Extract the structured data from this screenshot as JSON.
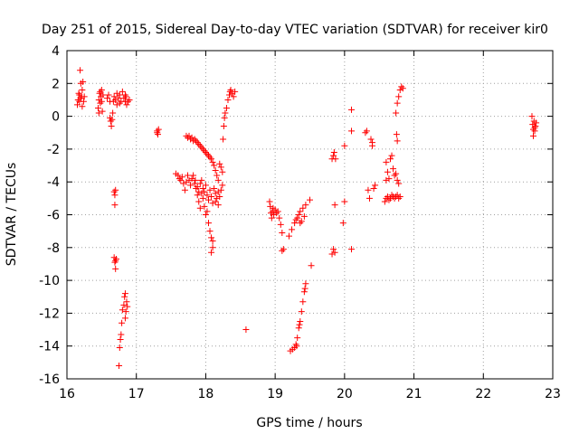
{
  "chart_data": {
    "type": "scatter",
    "title": "Day 251 of 2015, Sidereal Day-to-day VTEC variation (SDTVAR) for receiver kir0",
    "xlabel": "GPS time / hours",
    "ylabel": "SDTVAR / TECUs",
    "xlim": [
      16,
      23
    ],
    "ylim": [
      -16,
      4
    ],
    "grid": true,
    "marker": "+",
    "marker_color": "#ff0000",
    "xticks": [
      16,
      17,
      18,
      19,
      20,
      21,
      22,
      23
    ],
    "xtick_labels": [
      "16",
      "17",
      "18",
      "19",
      "20",
      "21",
      "22",
      "23"
    ],
    "yticks": [
      4,
      2,
      0,
      -2,
      -4,
      -6,
      -8,
      -10,
      -12,
      -14,
      -16
    ],
    "ytick_labels": [
      "4",
      "2",
      "0",
      "-2",
      "-4",
      "-6",
      "-8",
      "-10",
      "-12",
      "-14",
      "-16"
    ],
    "series": [
      {
        "name": "SDTVAR",
        "points": [
          [
            16.15,
            0.7
          ],
          [
            16.16,
            1.0
          ],
          [
            16.17,
            1.4
          ],
          [
            16.18,
            0.9
          ],
          [
            16.19,
            2.8
          ],
          [
            16.2,
            2.0
          ],
          [
            16.21,
            1.2
          ],
          [
            16.22,
            1.6
          ],
          [
            16.23,
            2.1
          ],
          [
            16.24,
            0.9
          ],
          [
            16.25,
            1.2
          ],
          [
            16.22,
            0.6
          ],
          [
            16.18,
            1.3
          ],
          [
            16.2,
            1.1
          ],
          [
            16.45,
            0.5
          ],
          [
            16.46,
            1.0
          ],
          [
            16.47,
            1.4
          ],
          [
            16.48,
            0.8
          ],
          [
            16.49,
            1.2
          ],
          [
            16.5,
            1.6
          ],
          [
            16.51,
            0.3
          ],
          [
            16.52,
            1.3
          ],
          [
            16.46,
            0.2
          ],
          [
            16.48,
            1.5
          ],
          [
            16.5,
            0.9
          ],
          [
            16.58,
            1.1
          ],
          [
            16.6,
            1.3
          ],
          [
            16.62,
            0.9
          ],
          [
            16.62,
            -0.1
          ],
          [
            16.63,
            -0.3
          ],
          [
            16.64,
            -0.6
          ],
          [
            16.65,
            -0.2
          ],
          [
            16.66,
            0.2
          ],
          [
            16.67,
            0.9
          ],
          [
            16.68,
            1.2
          ],
          [
            16.7,
            1.0
          ],
          [
            16.72,
            0.7
          ],
          [
            16.74,
            1.1
          ],
          [
            16.76,
            1.3
          ],
          [
            16.78,
            0.9
          ],
          [
            16.8,
            1.5
          ],
          [
            16.82,
            1.1
          ],
          [
            16.84,
            0.9
          ],
          [
            16.85,
            1.2
          ],
          [
            16.86,
            0.7
          ],
          [
            16.88,
            0.9
          ],
          [
            16.9,
            1.0
          ],
          [
            16.72,
            1.4
          ],
          [
            16.76,
            0.8
          ],
          [
            16.84,
            1.3
          ],
          [
            16.68,
            -4.6
          ],
          [
            16.69,
            -4.8
          ],
          [
            16.7,
            -4.5
          ],
          [
            16.69,
            -5.4
          ],
          [
            16.68,
            -8.6
          ],
          [
            16.69,
            -8.9
          ],
          [
            16.7,
            -8.8
          ],
          [
            16.7,
            -9.3
          ],
          [
            16.71,
            -8.7
          ],
          [
            16.75,
            -15.2
          ],
          [
            16.76,
            -14.1
          ],
          [
            16.77,
            -13.6
          ],
          [
            16.78,
            -13.3
          ],
          [
            16.79,
            -12.6
          ],
          [
            16.8,
            -11.8
          ],
          [
            16.82,
            -11.5
          ],
          [
            16.83,
            -11.0
          ],
          [
            16.84,
            -10.8
          ],
          [
            16.85,
            -11.9
          ],
          [
            16.86,
            -11.3
          ],
          [
            16.87,
            -11.6
          ],
          [
            16.84,
            -12.3
          ],
          [
            17.3,
            -0.9
          ],
          [
            17.31,
            -1.1
          ],
          [
            17.32,
            -0.8
          ],
          [
            17.3,
            -1.0
          ],
          [
            17.57,
            -3.5
          ],
          [
            17.6,
            -3.6
          ],
          [
            17.62,
            -3.8
          ],
          [
            17.64,
            -3.9
          ],
          [
            17.66,
            -3.7
          ],
          [
            17.68,
            -4.1
          ],
          [
            17.7,
            -4.5
          ],
          [
            17.72,
            -4.0
          ],
          [
            17.74,
            -3.6
          ],
          [
            17.76,
            -3.9
          ],
          [
            17.78,
            -4.2
          ],
          [
            17.8,
            -3.8
          ],
          [
            17.82,
            -3.6
          ],
          [
            17.84,
            -4.1
          ],
          [
            17.86,
            -4.4
          ],
          [
            17.88,
            -4.8
          ],
          [
            17.9,
            -5.2
          ],
          [
            17.92,
            -5.6
          ],
          [
            17.94,
            -4.7
          ],
          [
            17.96,
            -5.0
          ],
          [
            17.98,
            -5.5
          ],
          [
            18.0,
            -6.0
          ],
          [
            18.02,
            -5.8
          ],
          [
            18.04,
            -6.5
          ],
          [
            18.06,
            -7.0
          ],
          [
            18.08,
            -7.4
          ],
          [
            18.1,
            -8.0
          ],
          [
            18.08,
            -8.3
          ],
          [
            18.1,
            -7.6
          ],
          [
            17.72,
            -1.2
          ],
          [
            17.74,
            -1.3
          ],
          [
            17.76,
            -1.2
          ],
          [
            17.78,
            -1.4
          ],
          [
            17.8,
            -1.3
          ],
          [
            17.82,
            -1.5
          ],
          [
            17.84,
            -1.4
          ],
          [
            17.86,
            -1.5
          ],
          [
            17.88,
            -1.6
          ],
          [
            17.9,
            -1.7
          ],
          [
            17.92,
            -1.8
          ],
          [
            17.94,
            -1.9
          ],
          [
            17.96,
            -2.0
          ],
          [
            17.98,
            -2.1
          ],
          [
            18.0,
            -2.2
          ],
          [
            18.02,
            -2.3
          ],
          [
            18.04,
            -2.4
          ],
          [
            18.06,
            -2.5
          ],
          [
            18.08,
            -2.6
          ],
          [
            18.1,
            -2.8
          ],
          [
            18.12,
            -3.0
          ],
          [
            18.14,
            -3.3
          ],
          [
            18.16,
            -3.6
          ],
          [
            18.18,
            -3.9
          ],
          [
            18.2,
            -2.9
          ],
          [
            18.22,
            -3.1
          ],
          [
            18.24,
            -3.4
          ],
          [
            17.85,
            -3.9
          ],
          [
            17.88,
            -4.3
          ],
          [
            17.9,
            -4.6
          ],
          [
            17.92,
            -4.1
          ],
          [
            17.94,
            -3.9
          ],
          [
            17.96,
            -4.4
          ],
          [
            17.98,
            -4.6
          ],
          [
            18.0,
            -4.2
          ],
          [
            18.02,
            -4.8
          ],
          [
            18.04,
            -5.1
          ],
          [
            18.06,
            -4.5
          ],
          [
            18.08,
            -4.9
          ],
          [
            18.1,
            -5.3
          ],
          [
            18.12,
            -4.4
          ],
          [
            18.14,
            -4.7
          ],
          [
            18.16,
            -5.0
          ],
          [
            18.18,
            -5.4
          ],
          [
            18.2,
            -4.9
          ],
          [
            18.22,
            -4.5
          ],
          [
            18.24,
            -4.2
          ],
          [
            18.18,
            -4.6
          ],
          [
            18.14,
            -5.2
          ],
          [
            18.25,
            -1.4
          ],
          [
            18.26,
            -0.6
          ],
          [
            18.27,
            -0.1
          ],
          [
            18.28,
            0.2
          ],
          [
            18.3,
            0.5
          ],
          [
            18.32,
            1.0
          ],
          [
            18.34,
            1.3
          ],
          [
            18.36,
            1.6
          ],
          [
            18.38,
            1.4
          ],
          [
            18.4,
            1.2
          ],
          [
            18.42,
            1.5
          ],
          [
            18.35,
            1.5
          ],
          [
            18.58,
            -13.0
          ],
          [
            18.92,
            -5.2
          ],
          [
            18.93,
            -5.5
          ],
          [
            18.94,
            -5.9
          ],
          [
            18.95,
            -6.2
          ],
          [
            18.96,
            -5.8
          ],
          [
            18.97,
            -5.6
          ],
          [
            18.98,
            -6.0
          ],
          [
            19.0,
            -5.7
          ],
          [
            19.02,
            -5.9
          ],
          [
            19.04,
            -5.8
          ],
          [
            19.06,
            -6.2
          ],
          [
            19.08,
            -6.6
          ],
          [
            19.1,
            -7.1
          ],
          [
            19.12,
            -8.1
          ],
          [
            19.1,
            -8.2
          ],
          [
            19.22,
            -14.3
          ],
          [
            19.25,
            -14.2
          ],
          [
            19.28,
            -14.1
          ],
          [
            19.3,
            -13.9
          ],
          [
            19.32,
            -13.5
          ],
          [
            19.34,
            -12.9
          ],
          [
            19.36,
            -12.5
          ],
          [
            19.38,
            -11.9
          ],
          [
            19.4,
            -11.3
          ],
          [
            19.42,
            -10.7
          ],
          [
            19.44,
            -10.2
          ],
          [
            19.43,
            -10.5
          ],
          [
            19.35,
            -12.7
          ],
          [
            19.31,
            -14.0
          ],
          [
            19.2,
            -7.3
          ],
          [
            19.24,
            -6.9
          ],
          [
            19.28,
            -6.5
          ],
          [
            19.3,
            -6.3
          ],
          [
            19.32,
            -6.2
          ],
          [
            19.34,
            -6.0
          ],
          [
            19.36,
            -5.8
          ],
          [
            19.38,
            -6.4
          ],
          [
            19.4,
            -5.6
          ],
          [
            19.42,
            -6.1
          ],
          [
            19.44,
            -5.4
          ],
          [
            19.5,
            -5.1
          ],
          [
            19.36,
            -6.5
          ],
          [
            19.52,
            -9.1
          ],
          [
            19.82,
            -8.4
          ],
          [
            19.84,
            -8.1
          ],
          [
            19.86,
            -8.3
          ],
          [
            19.82,
            -2.6
          ],
          [
            19.84,
            -2.4
          ],
          [
            19.85,
            -2.2
          ],
          [
            19.86,
            -5.4
          ],
          [
            19.87,
            -2.6
          ],
          [
            19.98,
            -6.5
          ],
          [
            20.0,
            -5.2
          ],
          [
            20.0,
            -1.8
          ],
          [
            20.1,
            -8.1
          ],
          [
            20.1,
            -0.9
          ],
          [
            20.1,
            0.4
          ],
          [
            20.3,
            -1.0
          ],
          [
            20.32,
            -0.9
          ],
          [
            20.34,
            -4.5
          ],
          [
            20.36,
            -5.0
          ],
          [
            20.38,
            -1.4
          ],
          [
            20.4,
            -1.8
          ],
          [
            20.42,
            -4.4
          ],
          [
            20.44,
            -4.2
          ],
          [
            20.4,
            -1.6
          ],
          [
            20.58,
            -5.2
          ],
          [
            20.6,
            -5.0
          ],
          [
            20.62,
            -4.9
          ],
          [
            20.64,
            -5.1
          ],
          [
            20.66,
            -5.0
          ],
          [
            20.68,
            -4.8
          ],
          [
            20.7,
            -4.9
          ],
          [
            20.72,
            -5.0
          ],
          [
            20.74,
            -4.9
          ],
          [
            20.76,
            -4.8
          ],
          [
            20.78,
            -5.0
          ],
          [
            20.8,
            -4.9
          ],
          [
            20.6,
            -2.8
          ],
          [
            20.62,
            -3.4
          ],
          [
            20.64,
            -3.8
          ],
          [
            20.66,
            -2.6
          ],
          [
            20.68,
            -2.4
          ],
          [
            20.7,
            -3.2
          ],
          [
            20.72,
            -3.6
          ],
          [
            20.74,
            -3.5
          ],
          [
            20.76,
            -3.9
          ],
          [
            20.78,
            -4.1
          ],
          [
            20.75,
            -1.1
          ],
          [
            20.76,
            -1.5
          ],
          [
            20.74,
            0.2
          ],
          [
            20.76,
            0.8
          ],
          [
            20.78,
            1.2
          ],
          [
            20.8,
            1.6
          ],
          [
            20.82,
            1.8
          ],
          [
            20.84,
            1.7
          ],
          [
            20.6,
            -3.9
          ],
          [
            22.7,
            0.0
          ],
          [
            22.71,
            -0.5
          ],
          [
            22.72,
            -0.8
          ],
          [
            22.73,
            -0.3
          ],
          [
            22.74,
            -0.9
          ],
          [
            22.75,
            -0.6
          ],
          [
            22.76,
            -0.4
          ],
          [
            22.72,
            -1.2
          ],
          [
            22.74,
            -0.7
          ]
        ]
      }
    ]
  }
}
